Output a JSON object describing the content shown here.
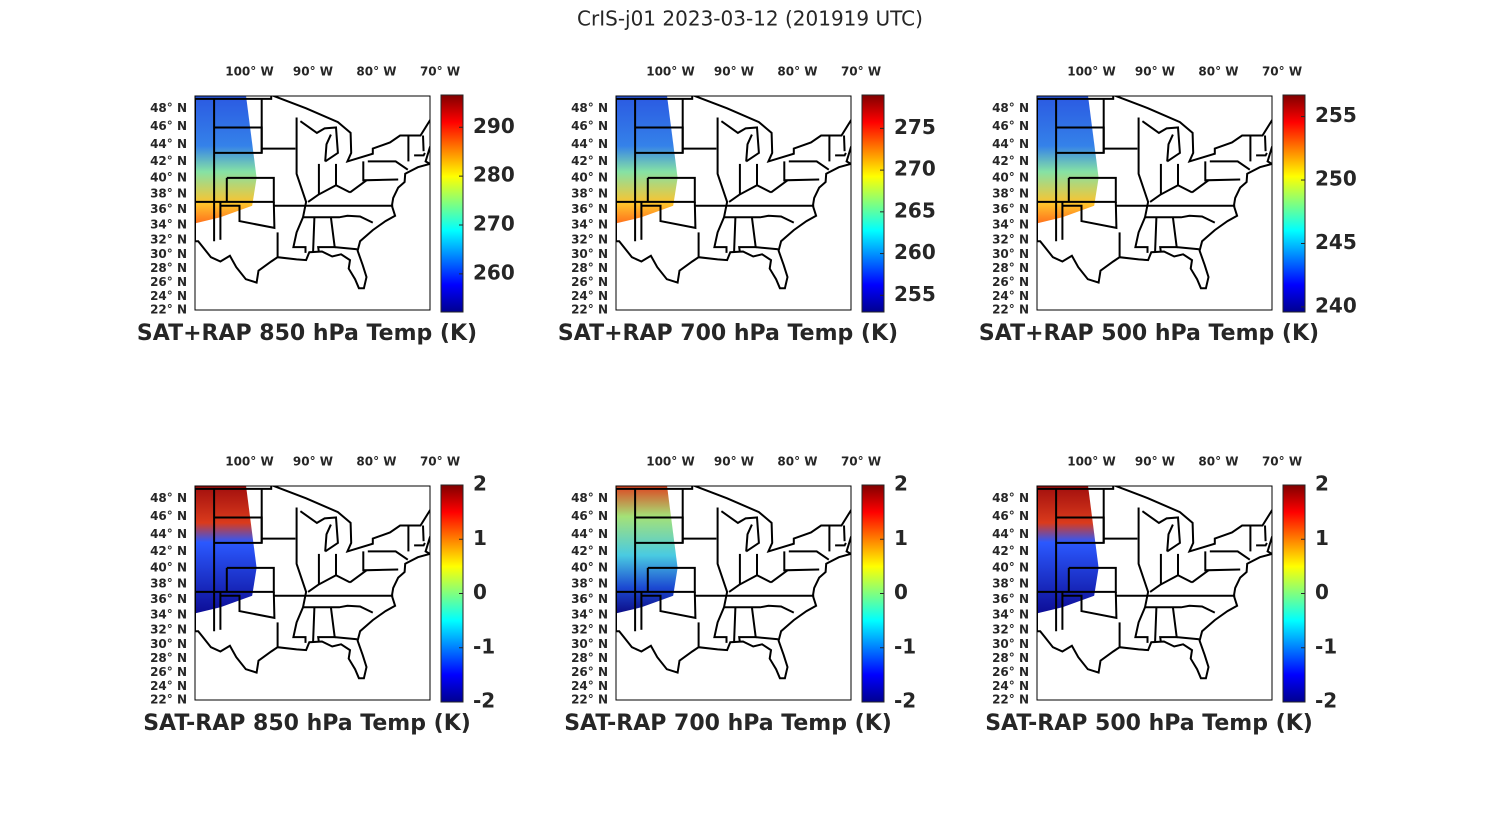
{
  "title": "CrIS-j01 2023-03-12 (201919 UTC)",
  "map": {
    "lonlim": [
      -107,
      -70
    ],
    "latlim": [
      22,
      49.3
    ],
    "lon_ticks": [
      {
        "value": -100,
        "label": "100° W"
      },
      {
        "value": -90,
        "label": "90° W"
      },
      {
        "value": -80,
        "label": "80° W"
      },
      {
        "value": -70,
        "label": "70° W"
      }
    ],
    "lat_ticks": [
      {
        "value": 48,
        "label": "48° N"
      },
      {
        "value": 46,
        "label": "46° N"
      },
      {
        "value": 44,
        "label": "44° N"
      },
      {
        "value": 42,
        "label": "42° N"
      },
      {
        "value": 40,
        "label": "40° N"
      },
      {
        "value": 38,
        "label": "38° N"
      },
      {
        "value": 36,
        "label": "36° N"
      },
      {
        "value": 34,
        "label": "34° N"
      },
      {
        "value": 32,
        "label": "32° N"
      },
      {
        "value": 30,
        "label": "30° N"
      },
      {
        "value": 28,
        "label": "28° N"
      },
      {
        "value": 26,
        "label": "26° N"
      },
      {
        "value": 24,
        "label": "24° N"
      },
      {
        "value": 22,
        "label": "22° N"
      }
    ]
  },
  "panels": [
    {
      "title": "SAT+RAP 850 hPa Temp (K)",
      "clim": [
        252.2,
        296.6
      ],
      "cticks": [
        260,
        270,
        280,
        290
      ]
    },
    {
      "title": "SAT+RAP 700 hPa Temp (K)",
      "clim": [
        253,
        279
      ],
      "cticks": [
        255,
        260,
        265,
        270,
        275
      ]
    },
    {
      "title": "SAT+RAP 500 hPa Temp (K)",
      "clim": [
        239.6,
        256.7
      ],
      "cticks": [
        240,
        245,
        250,
        255
      ]
    },
    {
      "title": "SAT-RAP 850 hPa Temp (K)",
      "clim": [
        -2,
        2
      ],
      "cticks": [
        -2,
        -1,
        0,
        1,
        2
      ]
    },
    {
      "title": "SAT-RAP 700 hPa Temp (K)",
      "clim": [
        -2,
        2
      ],
      "cticks": [
        -2,
        -1,
        0,
        1,
        2
      ]
    },
    {
      "title": "SAT-RAP 500 hPa Temp (K)",
      "clim": [
        -2,
        2
      ],
      "cticks": [
        -2,
        -1,
        0,
        1,
        2
      ]
    }
  ]
}
